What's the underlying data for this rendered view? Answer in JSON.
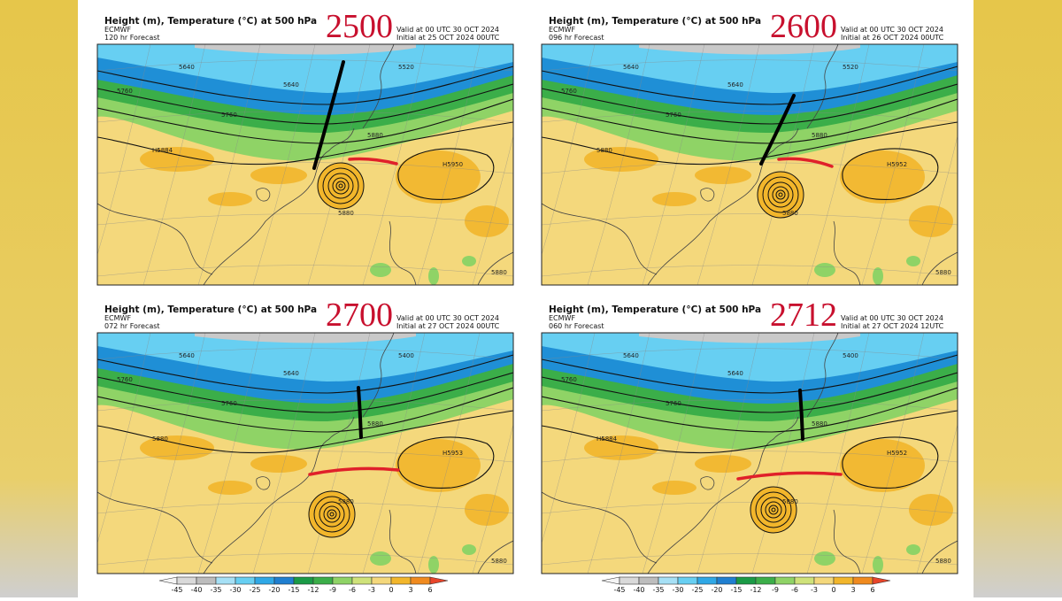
{
  "panels": [
    {
      "title": "Height (m), Temperature (°C) at 500 hPa",
      "model": "ECMWF",
      "forecast": "120 hr Forecast",
      "valid": "Valid at 00 UTC 30 OCT 2024",
      "initial": "Initial at 25 OCT 2024 00UTC",
      "annotation": "2500",
      "contour_labels": [
        "5520",
        "5640",
        "5760",
        "5760",
        "5640",
        "5880",
        "H5884",
        "5880",
        "H5950",
        "5880"
      ]
    },
    {
      "title": "Height (m), Temperature (°C) at 500 hPa",
      "model": "ECMWF",
      "forecast": "096 hr Forecast",
      "valid": "Valid at 00 UTC 30 OCT 2024",
      "initial": "Initial at 26 OCT 2024 00UTC",
      "annotation": "2600",
      "contour_labels": [
        "5520",
        "5640",
        "5760",
        "5760",
        "5640",
        "5880",
        "5880",
        "5880",
        "H5952",
        "5880"
      ]
    },
    {
      "title": "Height (m), Temperature (°C) at 500 hPa",
      "model": "ECMWF",
      "forecast": "072 hr Forecast",
      "valid": "Valid at 00 UTC 30 OCT 2024",
      "initial": "Initial at 27 OCT 2024 00UTC",
      "annotation": "2700",
      "contour_labels": [
        "5400",
        "5640",
        "5760",
        "5760",
        "5640",
        "5880",
        "5880",
        "5880",
        "H5953",
        "5880"
      ]
    },
    {
      "title": "Height (m), Temperature (°C) at 500 hPa",
      "model": "ECMWF",
      "forecast": "060 hr Forecast",
      "valid": "Valid at 00 UTC 30 OCT 2024",
      "initial": "Initial at 27 OCT 2024 12UTC",
      "annotation": "2712",
      "contour_labels": [
        "5400",
        "5640",
        "5760",
        "5760",
        "5640",
        "5880",
        "H5884",
        "5880",
        "H5952",
        "5880"
      ]
    }
  ],
  "colorbars": [
    [
      -45,
      -40,
      -35,
      -30,
      -25,
      -20,
      -15,
      -12,
      -9,
      -6,
      -3,
      0,
      3,
      6
    ],
    [
      -45,
      -40,
      -35,
      -30,
      -25,
      -20,
      -15,
      -12,
      -9,
      -6,
      -3,
      0,
      3,
      6
    ]
  ]
}
